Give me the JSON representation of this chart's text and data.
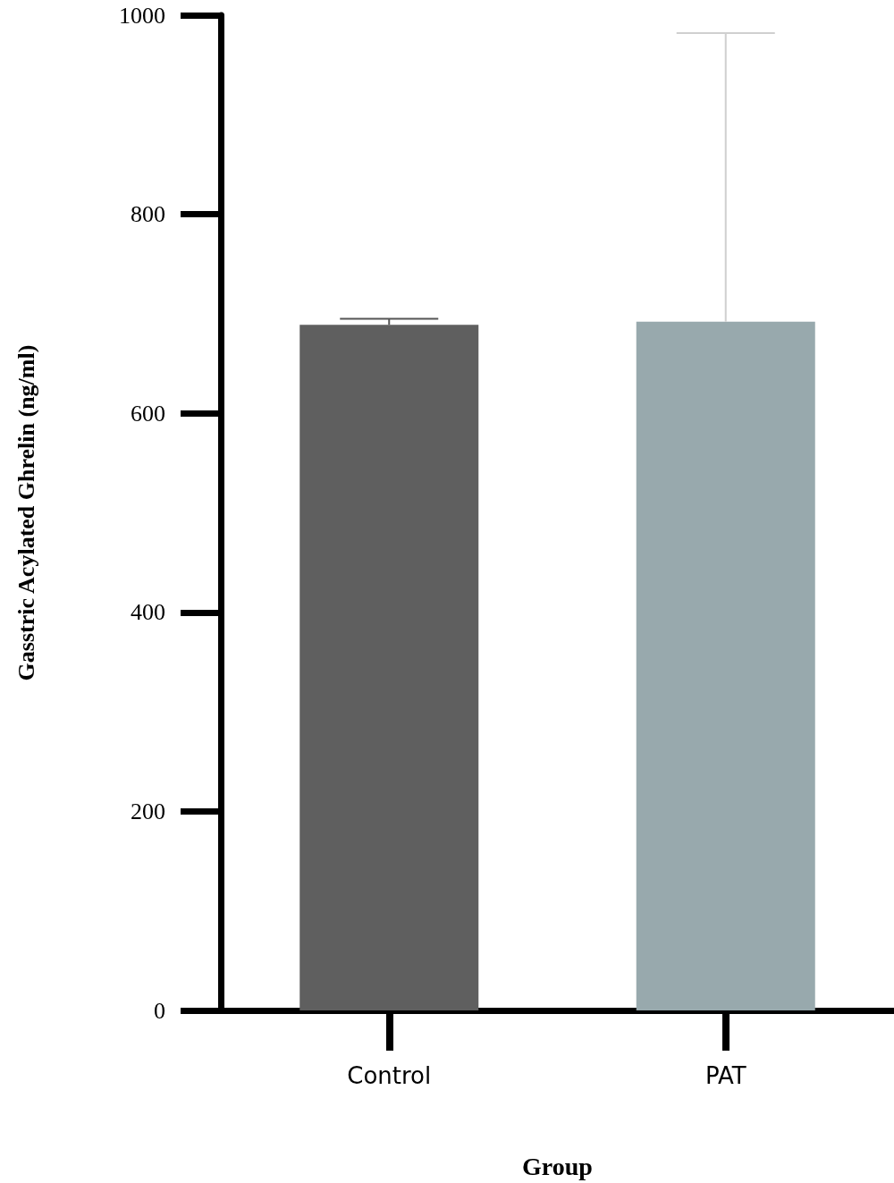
{
  "chart_data": {
    "type": "bar",
    "categories": [
      "Control",
      "PAT"
    ],
    "values": [
      689,
      692
    ],
    "errors": [
      [
        689,
        695
      ],
      [
        692,
        982
      ]
    ],
    "colors": [
      "#5f5f5f",
      "#98a9ad"
    ],
    "xlabel": "Group",
    "ylabel": "Gasstric Acylated Ghrelin (ng/ml)",
    "ylim": [
      0,
      1000
    ],
    "yticks": [
      0,
      200,
      400,
      600,
      800,
      1000
    ],
    "grid": false
  }
}
